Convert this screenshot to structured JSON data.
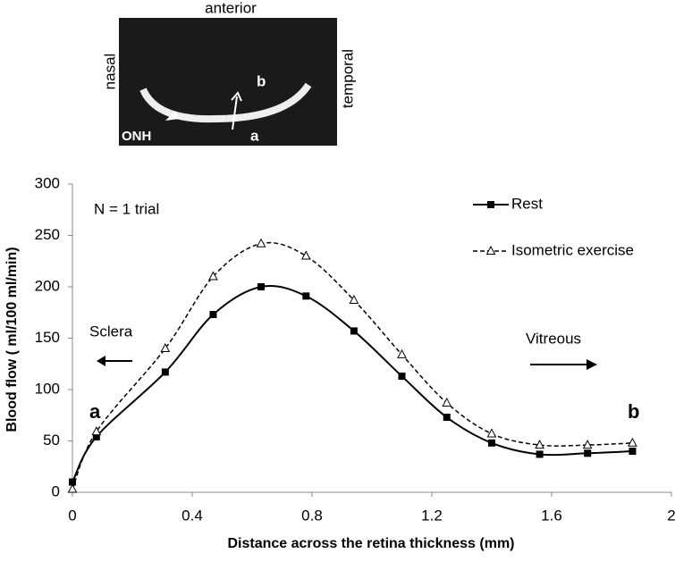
{
  "inset": {
    "top": "anterior",
    "left": "nasal",
    "right": "temporal",
    "inner_b": "b",
    "inner_a": "a",
    "onh": "ONH"
  },
  "chart_data": {
    "type": "line",
    "ylabel": "Blood flow ( ml/100 ml/min)",
    "xlabel": "Distance across the retina thickness (mm)",
    "annotations": [
      "N = 1 trial",
      "Sclera",
      "Vitreous",
      "a",
      "b"
    ],
    "x": [
      0,
      0.08,
      0.31,
      0.47,
      0.63,
      0.78,
      0.94,
      1.1,
      1.25,
      1.4,
      1.56,
      1.72,
      1.87
    ],
    "series": [
      {
        "name": "Rest",
        "color": "#000000",
        "values": [
          10,
          54,
          117,
          173,
          200,
          191,
          157,
          113,
          73,
          48,
          37,
          38,
          40
        ]
      },
      {
        "name": "Isometric exercise",
        "color": "#000000",
        "values": [
          3,
          59,
          140,
          210,
          242,
          230,
          187,
          134,
          87,
          57,
          46,
          46,
          48
        ]
      }
    ],
    "xlim": [
      0,
      2
    ],
    "xticks": [
      0,
      0.4,
      0.8,
      1.2,
      1.6,
      2
    ],
    "ylim": [
      0,
      300
    ],
    "yticks": [
      0,
      50,
      100,
      150,
      200,
      250,
      300
    ]
  }
}
